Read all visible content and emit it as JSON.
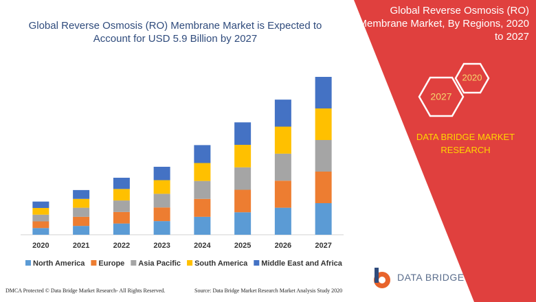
{
  "chart_data": {
    "type": "bar",
    "stacked": true,
    "title": "Global Reverse Osmosis (RO) Membrane Market is Expected to Account for USD 5.9 Billion by 2027",
    "categories": [
      "2020",
      "2021",
      "2022",
      "2023",
      "2024",
      "2025",
      "2026",
      "2027"
    ],
    "series": [
      {
        "name": "North America",
        "color": "#5b9bd5",
        "values": [
          0.25,
          0.33,
          0.42,
          0.51,
          0.67,
          0.84,
          1.01,
          1.18
        ]
      },
      {
        "name": "Europe",
        "color": "#ed7d31",
        "values": [
          0.25,
          0.34,
          0.43,
          0.51,
          0.67,
          0.84,
          1.01,
          1.18
        ]
      },
      {
        "name": "Asia Pacific",
        "color": "#a5a5a5",
        "values": [
          0.25,
          0.34,
          0.43,
          0.51,
          0.67,
          0.84,
          1.01,
          1.18
        ]
      },
      {
        "name": "South America",
        "color": "#ffc000",
        "values": [
          0.25,
          0.33,
          0.43,
          0.51,
          0.67,
          0.84,
          1.01,
          1.18
        ]
      },
      {
        "name": "Middle East and Africa",
        "color": "#4472c4",
        "values": [
          0.24,
          0.33,
          0.42,
          0.5,
          0.67,
          0.84,
          1.01,
          1.18
        ]
      }
    ]
  },
  "panel": {
    "title": "Global Reverse Osmosis (RO) Membrane Market, By Regions, 2020 to 2027",
    "start_year": "2020",
    "end_year": "2027",
    "brand": "DATA BRIDGE MARKET RESEARCH"
  },
  "footer": {
    "left": "DMCA Protected © Data Bridge Market Research- All Rights Reserved.",
    "right": "Source: Data Bridge Market Research Market Analysis Study 2020",
    "logo": "DATA BRIDGE"
  }
}
